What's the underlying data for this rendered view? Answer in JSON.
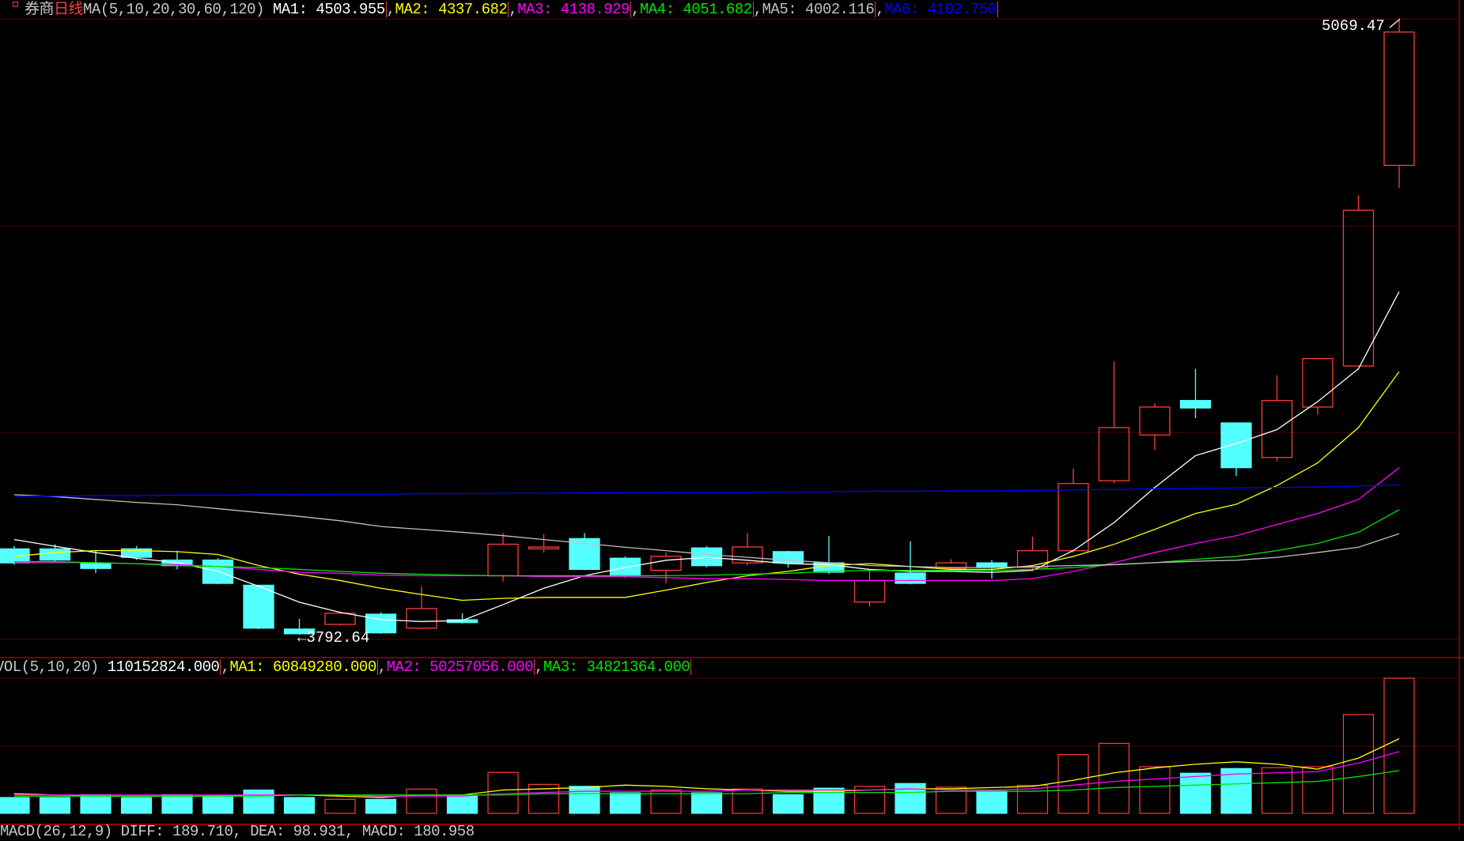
{
  "title": {
    "part1": "券商",
    "part2": "日线",
    "part1_color": "#c8c8c8",
    "part2_color": "#ff4040"
  },
  "price_header": {
    "label": "MA(5,10,20,30,60,120)",
    "items": [
      {
        "name": "MA1",
        "value": "4503.955",
        "color": "#ffffff"
      },
      {
        "name": "MA2",
        "value": "4337.682",
        "color": "#ffff00"
      },
      {
        "name": "MA3",
        "value": "4138.929",
        "color": "#ff00ff"
      },
      {
        "name": "MA4",
        "value": "4051.682",
        "color": "#00e600"
      },
      {
        "name": "MA5",
        "value": "4002.116",
        "color": "#c0c0c0"
      },
      {
        "name": "MA6",
        "value": "4102.750",
        "color": "#0000ff"
      }
    ]
  },
  "vol_header": {
    "label": "VOL(5,10,20)",
    "value": "110152824.000",
    "items": [
      {
        "name": "MA1",
        "value": "60849280.000",
        "color": "#ffff00"
      },
      {
        "name": "MA2",
        "value": "50257056.000",
        "color": "#ff00ff"
      },
      {
        "name": "MA3",
        "value": "34821364.000",
        "color": "#00e600"
      }
    ]
  },
  "macd_header": {
    "text": "MACD(26,12,9) DIFF: 189.710, DEA: 98.931, MACD: 180.958"
  },
  "annotations": {
    "high": "5069.47",
    "low": "←3792.64"
  },
  "chart_data": [
    {
      "type": "candlestick",
      "up_color": "#ff3c3c",
      "down_color": "#54ffff",
      "ylim": [
        3792.64,
        5069.47
      ],
      "grid": true,
      "ohlc": [
        [
          3970.6,
          3976.4,
          3937.8,
          3941.6
        ],
        [
          3970.6,
          3980.3,
          3943.6,
          3947.4
        ],
        [
          3941.6,
          3966.8,
          3920.4,
          3930.0
        ],
        [
          3970.6,
          3976.4,
          3947.4,
          3953.2
        ],
        [
          3947.4,
          3966.8,
          3928.1,
          3935.8
        ],
        [
          3947.4,
          3951.3,
          3897.1,
          3899.1
        ],
        [
          3895.2,
          3895.2,
          3804.3,
          3806.2
        ],
        [
          3804.3,
          3825.6,
          3792.64,
          3794.6
        ],
        [
          3814.0,
          3841.0,
          3812.0,
          3837.2
        ],
        [
          3835.2,
          3839.1,
          3794.6,
          3796.5
        ],
        [
          3806.2,
          3893.3,
          3804.3,
          3846.8
        ],
        [
          3823.6,
          3837.2,
          3815.9,
          3817.8
        ],
        [
          3914.6,
          4003.5,
          3902.9,
          3980.3
        ],
        [
          3970.6,
          4001.6,
          3962.9,
          3974.5
        ],
        [
          3991.9,
          4003.5,
          3926.2,
          3928.1
        ],
        [
          3951.3,
          3955.2,
          3910.7,
          3914.6
        ],
        [
          3926.2,
          3962.9,
          3899.1,
          3955.2
        ],
        [
          3972.6,
          3976.4,
          3932.0,
          3935.8
        ],
        [
          3941.6,
          4003.5,
          3935.8,
          3974.5
        ],
        [
          3964.9,
          3966.8,
          3932.0,
          3941.6
        ],
        [
          3941.6,
          3997.7,
          3918.4,
          3922.3
        ],
        [
          3860.4,
          3928.1,
          3850.7,
          3904.9
        ],
        [
          3920.4,
          3986.1,
          3897.1,
          3899.1
        ],
        [
          3930.0,
          3949.4,
          3924.2,
          3941.6
        ],
        [
          3941.6,
          3947.4,
          3908.8,
          3932.0
        ],
        [
          3932.0,
          3995.8,
          3928.1,
          3966.8
        ],
        [
          3966.8,
          4137.0,
          3962.9,
          4106.1
        ],
        [
          4111.9,
          4359.5,
          4106.1,
          4222.2
        ],
        [
          4206.7,
          4272.5,
          4175.7,
          4264.7
        ],
        [
          4278.3,
          4344.0,
          4241.5,
          4262.8
        ],
        [
          4231.8,
          4231.8,
          4121.6,
          4139.0
        ],
        [
          4160.2,
          4330.5,
          4152.5,
          4278.3
        ],
        [
          4264.7,
          4365.3,
          4249.2,
          4365.3
        ],
        [
          4349.8,
          4703.9,
          4349.8,
          4672.9
        ],
        [
          4765.8,
          5069.47,
          4719.3,
          5042.4
        ]
      ],
      "ma_series": [
        {
          "name": "MA1",
          "color": "#ffffff",
          "values": [
            3990,
            3976,
            3963,
            3951,
            3942,
            3924,
            3893,
            3860,
            3839,
            3824,
            3820,
            3822,
            3855,
            3889,
            3915,
            3932,
            3947,
            3953,
            3947,
            3940,
            3938,
            3928,
            3924,
            3924,
            3922,
            3926,
            3967,
            4025,
            4098,
            4164,
            4189,
            4218,
            4276,
            4344,
            4504
          ]
        },
        {
          "name": "MA2",
          "color": "#ffff00",
          "values": [
            3955,
            3963,
            3967,
            3967,
            3965,
            3959,
            3936,
            3918,
            3905,
            3889,
            3876,
            3864,
            3868,
            3870,
            3870,
            3870,
            3885,
            3901,
            3915,
            3924,
            3936,
            3940,
            3934,
            3928,
            3928,
            3936,
            3955,
            3980,
            4011,
            4044,
            4063,
            4102,
            4149,
            4222,
            4338
          ]
        },
        {
          "name": "MA3",
          "color": "#ff00ff",
          "values": [
            3942,
            3942,
            3942,
            3940,
            3938,
            3934,
            3928,
            3922,
            3920,
            3916,
            3915,
            3915,
            3915,
            3913,
            3913,
            3913,
            3911,
            3909,
            3909,
            3907,
            3905,
            3905,
            3905,
            3905,
            3905,
            3909,
            3924,
            3942,
            3963,
            3982,
            3998,
            4021,
            4044,
            4073,
            4139
          ]
        },
        {
          "name": "MA4",
          "color": "#00e600",
          "values": [
            3944,
            3944,
            3942,
            3940,
            3936,
            3934,
            3932,
            3928,
            3924,
            3920,
            3918,
            3916,
            3915,
            3915,
            3915,
            3915,
            3915,
            3916,
            3918,
            3920,
            3924,
            3926,
            3926,
            3926,
            3926,
            3928,
            3932,
            3938,
            3942,
            3949,
            3955,
            3967,
            3982,
            4005,
            4052
          ]
        },
        {
          "name": "MA5",
          "color": "#c0c0c0",
          "values": [
            4083,
            4079,
            4073,
            4067,
            4062,
            4054,
            4046,
            4038,
            4029,
            4017,
            4011,
            4005,
            3998,
            3990,
            3982,
            3974,
            3967,
            3959,
            3953,
            3947,
            3942,
            3936,
            3934,
            3932,
            3932,
            3934,
            3936,
            3938,
            3942,
            3945,
            3947,
            3953,
            3963,
            3974,
            4002
          ]
        },
        {
          "name": "MA6",
          "color": "#0000ff",
          "values": [
            4080,
            4080,
            4081,
            4081,
            4082,
            4082,
            4083,
            4083,
            4084,
            4084,
            4085,
            4085,
            4086,
            4086,
            4087,
            4087,
            4088,
            4088,
            4088,
            4089,
            4089,
            4090,
            4090,
            4091,
            4091,
            4092,
            4093,
            4094,
            4095,
            4096,
            4097,
            4098,
            4099,
            4101,
            4103
          ]
        }
      ]
    },
    {
      "type": "bar",
      "unit": "millions",
      "ylim": [
        0,
        110.15
      ],
      "values": [
        12.9,
        12.9,
        15.2,
        12.9,
        15.2,
        14.4,
        19.0,
        12.9,
        11.4,
        11.4,
        19.8,
        14.4,
        33.4,
        23.6,
        22.0,
        16.7,
        19.0,
        16.7,
        19.8,
        15.2,
        20.5,
        22.0,
        24.3,
        21.3,
        18.2,
        22.8,
        47.9,
        57.0,
        38.0,
        32.7,
        36.5,
        37.2,
        38.0,
        80.5,
        110.15
      ],
      "ma_series": [
        {
          "name": "MA1",
          "color": "#ffff00",
          "values": [
            16,
            15,
            14,
            14,
            14,
            14,
            15,
            15,
            14,
            13,
            15,
            15,
            19,
            20,
            21,
            23,
            22,
            20,
            19,
            18,
            18,
            19,
            20,
            20,
            21,
            22,
            27,
            33,
            37,
            40,
            42,
            40,
            36,
            45,
            60.8
          ]
        },
        {
          "name": "MA2",
          "color": "#ff00ff",
          "values": [
            15,
            15,
            15,
            15,
            15,
            15,
            15,
            15,
            15,
            14,
            14,
            14,
            16,
            17,
            18,
            18,
            18,
            18,
            19,
            19,
            19,
            19,
            20,
            19,
            19,
            20,
            23,
            26,
            28,
            30,
            32,
            33,
            34,
            41,
            50.3
          ]
        },
        {
          "name": "MA3",
          "color": "#00e600",
          "values": [
            14,
            14,
            14,
            14,
            14,
            14,
            14,
            15,
            15,
            15,
            15,
            15,
            15,
            16,
            16,
            16,
            16,
            16,
            16,
            17,
            17,
            17,
            17,
            18,
            18,
            18,
            19,
            21,
            22,
            23,
            24,
            25,
            26,
            30,
            34.8
          ]
        }
      ]
    }
  ]
}
